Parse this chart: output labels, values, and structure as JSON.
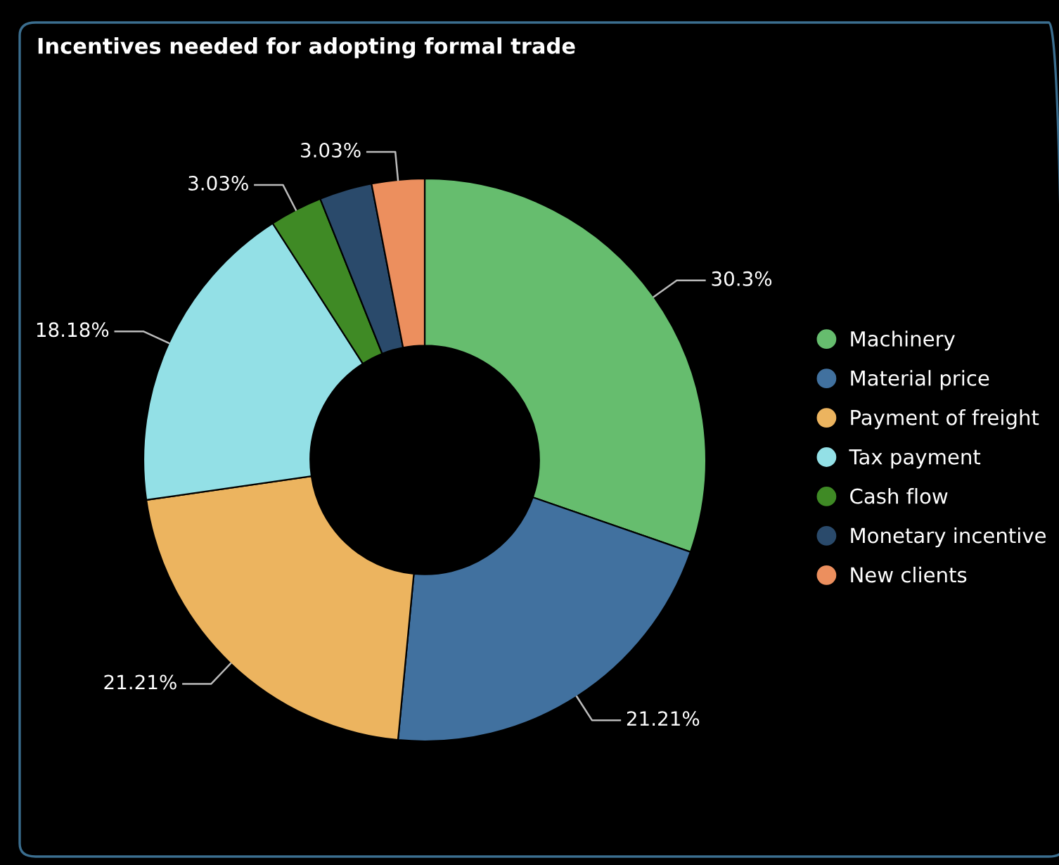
{
  "chart_data": {
    "type": "donut",
    "title": "Incentives needed for adopting formal trade",
    "categories": [
      "Machinery",
      "Material price",
      "Payment of freight",
      "Tax payment",
      "Cash flow",
      "Monetary incentive",
      "New clients"
    ],
    "values": [
      30.3,
      21.21,
      21.21,
      18.18,
      3.03,
      3.03,
      3.03
    ],
    "colors": [
      "#66bd6e",
      "#41719f",
      "#ecb45f",
      "#93e0e6",
      "#3f8a25",
      "#2a4a6b",
      "#ec8f5e"
    ],
    "value_labels": [
      "30.3%",
      "21.21%",
      "21.21%",
      "18.18%",
      "3.03%",
      null,
      "3.03%"
    ],
    "legend": "right"
  }
}
